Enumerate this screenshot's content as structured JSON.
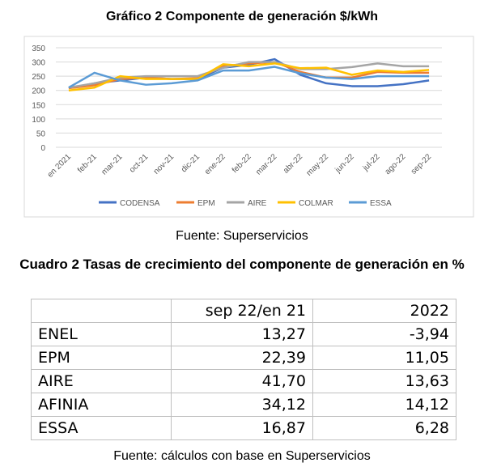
{
  "chart_data": {
    "type": "line",
    "title": "Gráfico 2 Componente de generación $/kWh",
    "categories": [
      "en 2021",
      "feb-21",
      "mar-21",
      "oct-21",
      "nov-21",
      "dic-21",
      "ene-22",
      "feb-22",
      "mar-22",
      "abr-22",
      "may-22",
      "jun-22",
      "jul-22",
      "ago-22",
      "sep-22"
    ],
    "series": [
      {
        "name": "CODENSA",
        "color": "#4472c4",
        "values": [
          208,
          225,
          235,
          245,
          240,
          240,
          280,
          290,
          310,
          255,
          225,
          215,
          215,
          222,
          235
        ]
      },
      {
        "name": "EPM",
        "color": "#ed7d31",
        "values": [
          208,
          218,
          240,
          245,
          240,
          243,
          285,
          295,
          300,
          265,
          245,
          245,
          265,
          262,
          262
        ]
      },
      {
        "name": "AIRE",
        "color": "#a5a5a5",
        "values": [
          210,
          225,
          245,
          250,
          250,
          250,
          280,
          300,
          300,
          275,
          275,
          282,
          295,
          285,
          285
        ]
      },
      {
        "name": "COLMAR",
        "color": "#ffc000",
        "values": [
          200,
          210,
          250,
          240,
          240,
          240,
          292,
          285,
          295,
          278,
          280,
          255,
          270,
          265,
          272
        ]
      },
      {
        "name": "ESSA",
        "color": "#5b9bd5",
        "values": [
          210,
          262,
          235,
          220,
          225,
          235,
          270,
          270,
          283,
          260,
          245,
          240,
          250,
          250,
          250
        ]
      }
    ],
    "ylim": [
      0,
      350
    ],
    "yticks": [
      0,
      50,
      100,
      150,
      200,
      250,
      300,
      350
    ],
    "grid": true,
    "legend": "bottom"
  },
  "chart_source": "Fuente: Superservicios",
  "table": {
    "title": "Cuadro 2  Tasas de crecimiento del componente de generación en %",
    "header": [
      "sep 22/en 21",
      "2022"
    ],
    "rows": [
      [
        "ENEL",
        "13,27",
        "-3,94"
      ],
      [
        "EPM",
        "22,39",
        "11,05"
      ],
      [
        "AIRE",
        "41,70",
        "13,63"
      ],
      [
        "AFINIA",
        "34,12",
        "14,12"
      ],
      [
        "ESSA",
        "16,87",
        "6,28"
      ]
    ]
  },
  "table_source": "Fuente: cálculos con base en Superservicios"
}
